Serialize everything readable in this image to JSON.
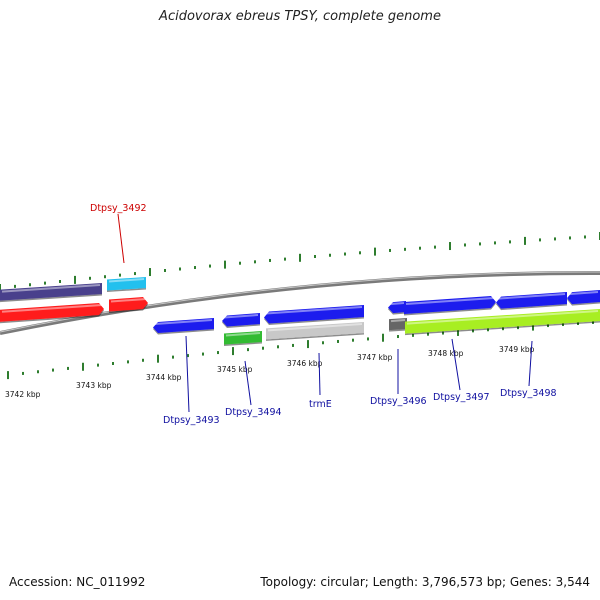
{
  "title": "Acidovorax ebreus TPSY, complete genome",
  "footer": {
    "accession": "Accession: NC_011992",
    "summary": "Topology: circular; Length: 3,796,573 bp; Genes: 3,544"
  },
  "colors": {
    "backbone": "#8a8a8a",
    "tick": "#2e7d2e",
    "label_highlight": "#cc0000",
    "label_normal": "#1010a0"
  },
  "scale_labels": [
    "3742 kbp",
    "3743 kbp",
    "3744 kbp",
    "3745 kbp",
    "3746 kbp",
    "3747 kbp",
    "3748 kbp",
    "3749 kbp"
  ],
  "genes": [
    {
      "id": "Dtpsy_3492",
      "color": "#ff1a1a",
      "highlight": true
    },
    {
      "id": "Dtpsy_3493",
      "color": "#1a1aee",
      "highlight": false
    },
    {
      "id": "Dtpsy_3494",
      "color": "#1a1aee",
      "highlight": false
    },
    {
      "id": "trmE",
      "color": "#1a1aee",
      "highlight": false
    },
    {
      "id": "Dtpsy_3496",
      "color": "#1a1aee",
      "highlight": false
    },
    {
      "id": "Dtpsy_3497",
      "color": "#1a1aee",
      "highlight": false
    },
    {
      "id": "Dtpsy_3498",
      "color": "#1a1aee",
      "highlight": false
    }
  ],
  "feature_colors": {
    "outer_purple": "#4a3f8c",
    "outer_cyan": "#22c0ee",
    "red": "#ff1a1a",
    "blue": "#1a1aee",
    "green": "#33bb33",
    "lightgray": "#c8c8c8",
    "darkgray": "#666666",
    "lime": "#a8ee22"
  }
}
